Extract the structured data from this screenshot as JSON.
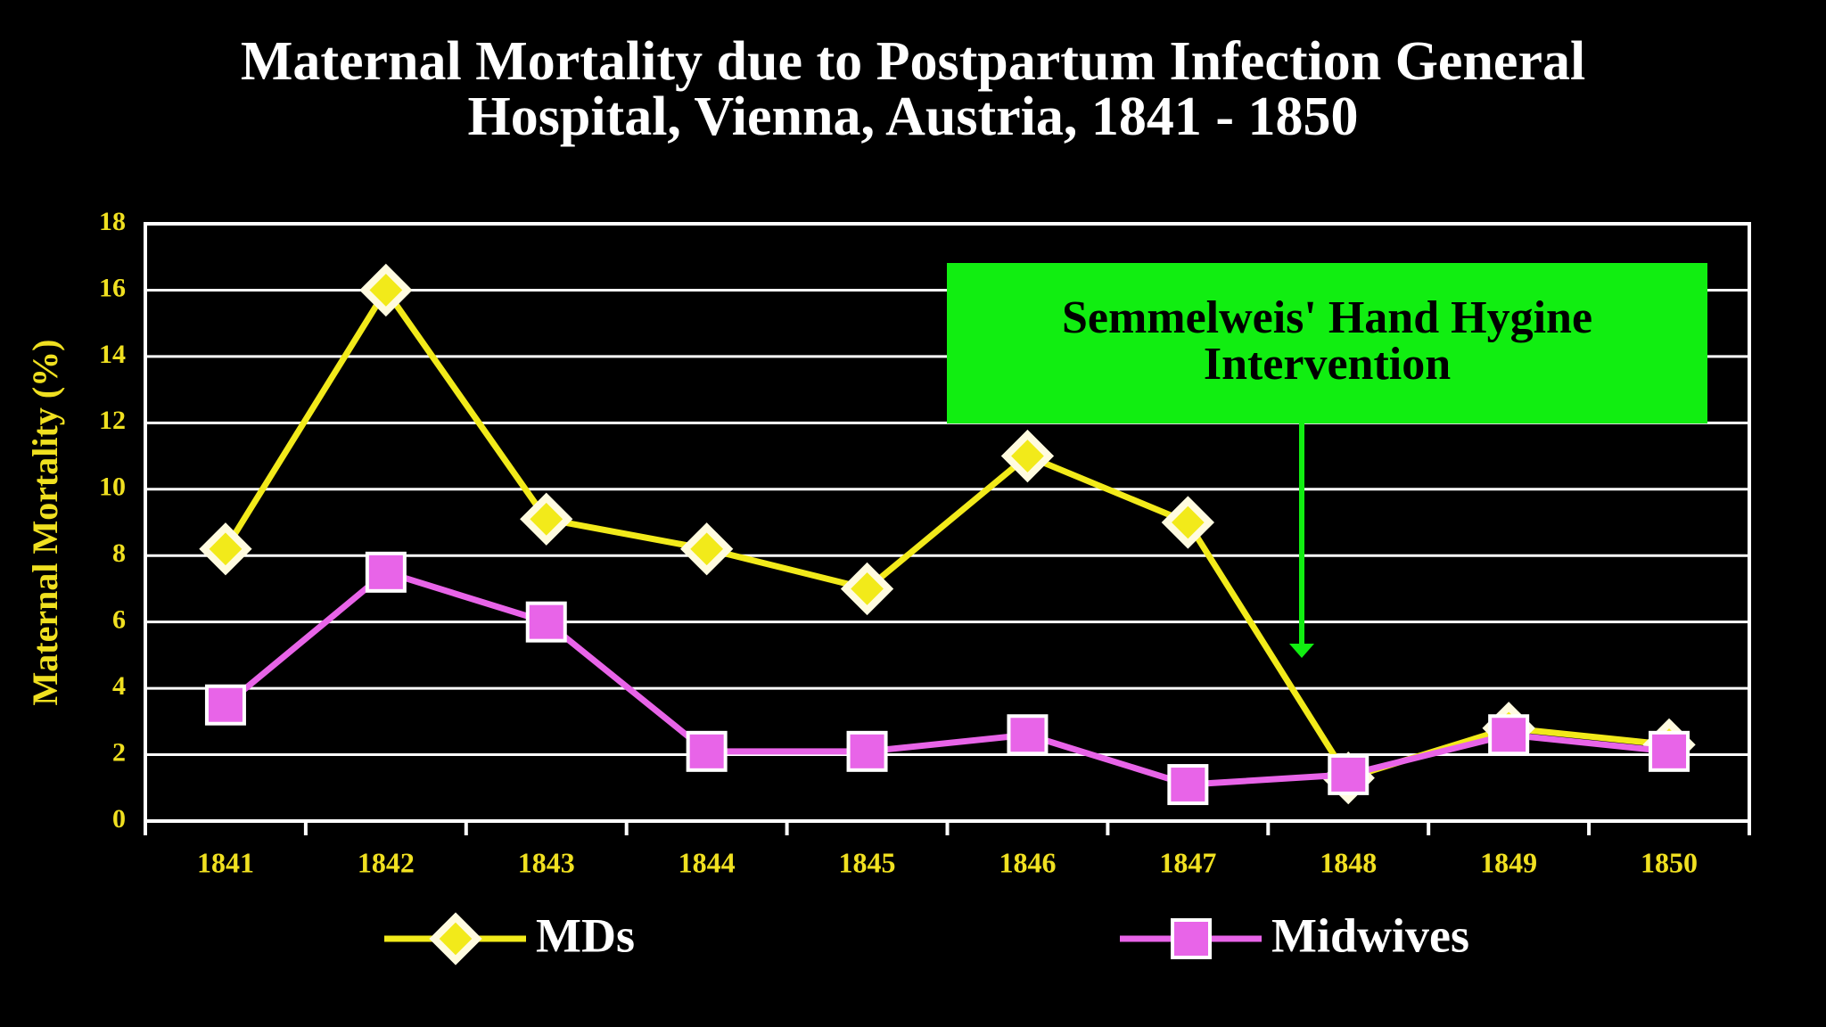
{
  "chart_data": {
    "type": "line",
    "title": "Maternal Mortality due to Postpartum Infection General Hospital, Vienna, Austria, 1841 - 1850",
    "y_label": "Maternal Mortality (%)",
    "annotation": "Semmelweis' Hand Hygine Intervention",
    "categories": [
      "1841",
      "1842",
      "1843",
      "1844",
      "1845",
      "1846",
      "1847",
      "1848",
      "1849",
      "1850"
    ],
    "series": [
      {
        "name": "MDs",
        "color": "#f2ea1a",
        "values": [
          8.2,
          16,
          9.1,
          8.2,
          7.0,
          11.0,
          9.0,
          1.3,
          2.8,
          2.3
        ]
      },
      {
        "name": "Midwives",
        "color": "#e864e8",
        "values": [
          3.5,
          7.5,
          6.0,
          2.1,
          2.1,
          2.6,
          1.1,
          1.4,
          2.6,
          2.1
        ]
      }
    ],
    "ylim": [
      0,
      18
    ],
    "yticks": [
      0,
      2,
      4,
      6,
      8,
      10,
      12,
      14,
      16,
      18
    ],
    "grid": true
  }
}
